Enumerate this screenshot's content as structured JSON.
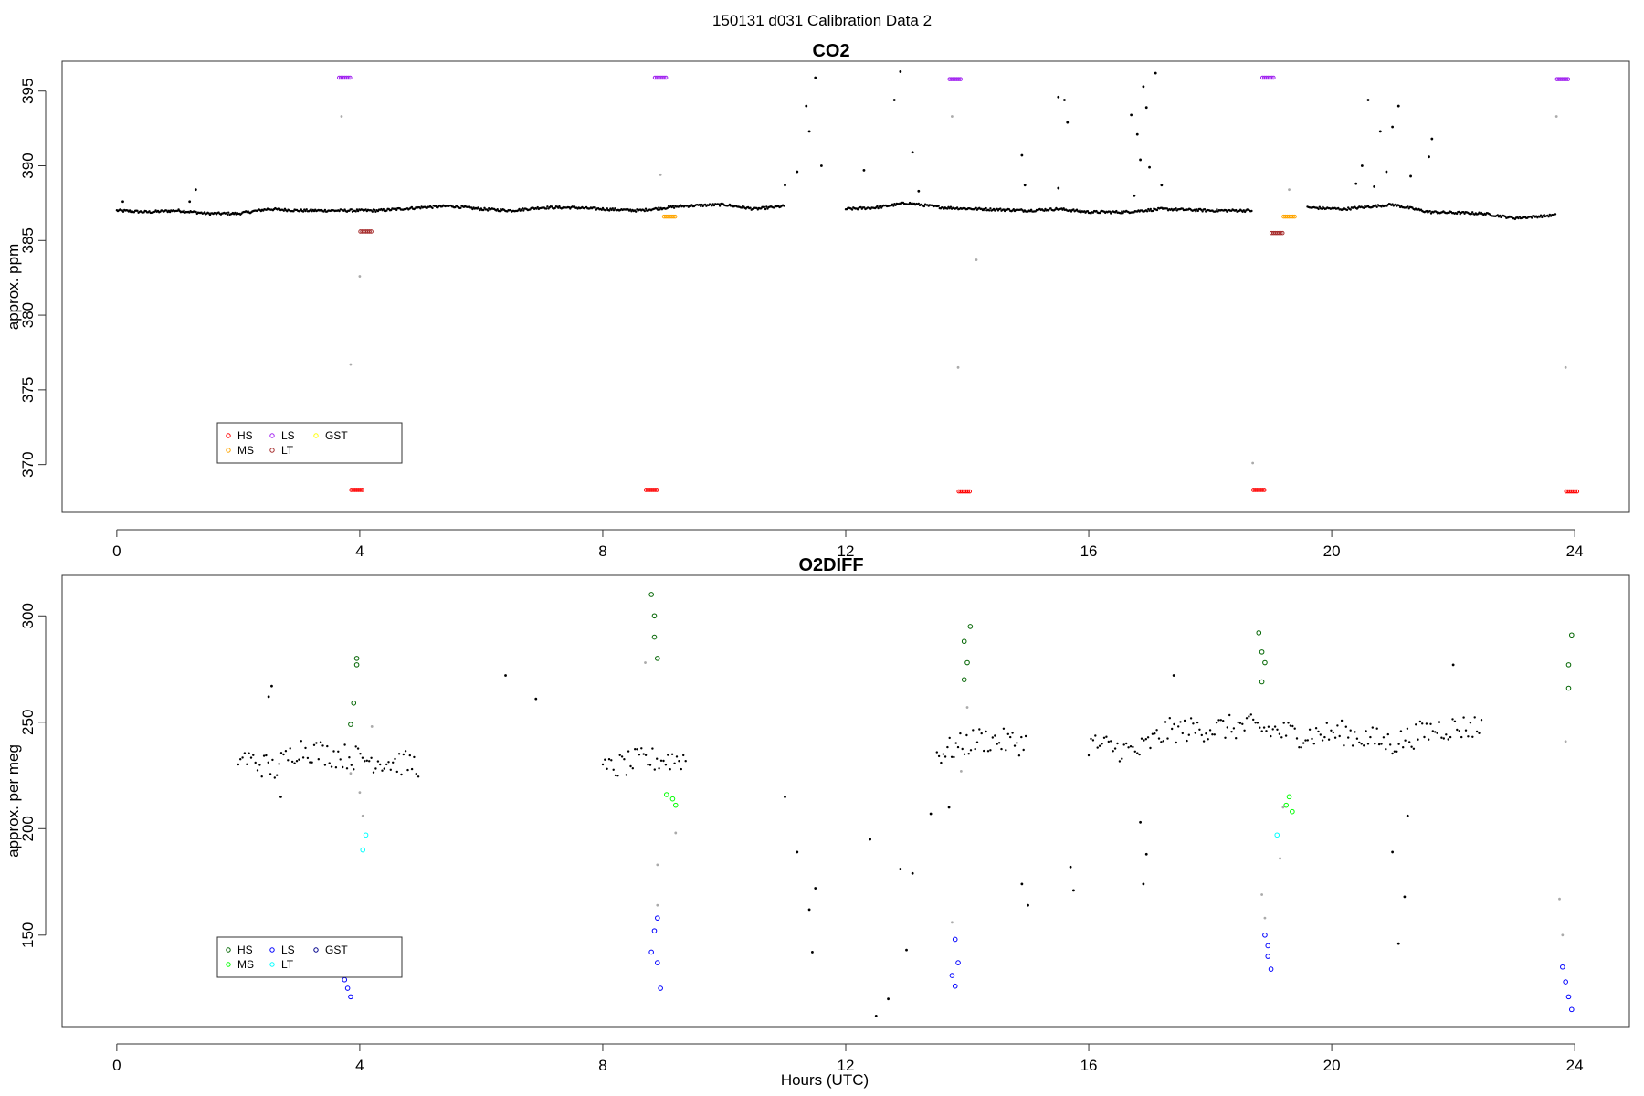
{
  "figure": {
    "title": "150131   d031   Calibration Data 2"
  },
  "legend_colors": {
    "HS_co2": "#ff0000",
    "MS_co2": "#ffa500",
    "LS_co2": "#a020f0",
    "LT_co2": "#a52a2a",
    "GST_co2": "#ffff00",
    "HS_o2": "#006400",
    "MS_o2": "#00ff00",
    "LS_o2": "#0000ff",
    "LT_o2": "#00ffff",
    "GST_o2": "#00008b"
  },
  "chart_data": [
    {
      "type": "scatter",
      "title": "CO2",
      "xlabel": "",
      "ylabel": "approx. ppm",
      "xlim": [
        -0.9,
        24.9
      ],
      "ylim": [
        366.8,
        397.0
      ],
      "xticks": [
        0,
        4,
        8,
        12,
        16,
        20,
        24
      ],
      "yticks": [
        370,
        375,
        380,
        385,
        390,
        395
      ],
      "legend": {
        "placement": "bottom-left",
        "entries": [
          "HS",
          "LS",
          "GST",
          "MS",
          "LT"
        ]
      },
      "baseline": [
        {
          "x": 0.0,
          "y": 387.0
        },
        {
          "x": 0.5,
          "y": 386.9
        },
        {
          "x": 1.0,
          "y": 387.0
        },
        {
          "x": 1.5,
          "y": 386.8
        },
        {
          "x": 2.0,
          "y": 386.8
        },
        {
          "x": 2.5,
          "y": 387.1
        },
        {
          "x": 3.0,
          "y": 387.0
        },
        {
          "x": 3.5,
          "y": 387.0
        },
        {
          "x": 4.3,
          "y": 387.0
        },
        {
          "x": 5.0,
          "y": 387.2
        },
        {
          "x": 5.5,
          "y": 387.3
        },
        {
          "x": 6.0,
          "y": 387.1
        },
        {
          "x": 6.5,
          "y": 387.0
        },
        {
          "x": 7.0,
          "y": 387.2
        },
        {
          "x": 7.5,
          "y": 387.2
        },
        {
          "x": 8.0,
          "y": 387.1
        },
        {
          "x": 8.6,
          "y": 387.0
        },
        {
          "x": 9.3,
          "y": 387.3
        },
        {
          "x": 10.0,
          "y": 387.4
        },
        {
          "x": 10.5,
          "y": 387.1
        },
        {
          "x": 11.0,
          "y": 387.3
        },
        {
          "x": 12.0,
          "y": 387.1
        },
        {
          "x": 12.5,
          "y": 387.2
        },
        {
          "x": 13.0,
          "y": 387.5
        },
        {
          "x": 13.6,
          "y": 387.2
        },
        {
          "x": 14.2,
          "y": 387.1
        },
        {
          "x": 15.0,
          "y": 387.0
        },
        {
          "x": 15.5,
          "y": 387.1
        },
        {
          "x": 16.0,
          "y": 386.9
        },
        {
          "x": 16.6,
          "y": 386.9
        },
        {
          "x": 17.2,
          "y": 387.1
        },
        {
          "x": 18.0,
          "y": 387.0
        },
        {
          "x": 18.7,
          "y": 387.0
        },
        {
          "x": 19.6,
          "y": 387.2
        },
        {
          "x": 20.2,
          "y": 387.1
        },
        {
          "x": 21.0,
          "y": 387.4
        },
        {
          "x": 21.6,
          "y": 386.9
        },
        {
          "x": 22.5,
          "y": 386.8
        },
        {
          "x": 23.0,
          "y": 386.5
        },
        {
          "x": 23.7,
          "y": 386.7
        }
      ],
      "spikes": [
        {
          "x": 0.1,
          "y": 387.6
        },
        {
          "x": 1.2,
          "y": 387.6
        },
        {
          "x": 1.3,
          "y": 388.4
        },
        {
          "x": 11.0,
          "y": 388.7
        },
        {
          "x": 11.2,
          "y": 389.6
        },
        {
          "x": 11.35,
          "y": 394.0
        },
        {
          "x": 11.4,
          "y": 392.3
        },
        {
          "x": 11.5,
          "y": 395.9
        },
        {
          "x": 11.6,
          "y": 390.0
        },
        {
          "x": 12.3,
          "y": 389.7
        },
        {
          "x": 12.9,
          "y": 396.3
        },
        {
          "x": 12.8,
          "y": 394.4
        },
        {
          "x": 13.1,
          "y": 390.9
        },
        {
          "x": 13.2,
          "y": 388.3
        },
        {
          "x": 14.9,
          "y": 390.7
        },
        {
          "x": 14.95,
          "y": 388.7
        },
        {
          "x": 15.5,
          "y": 394.6
        },
        {
          "x": 15.6,
          "y": 394.4
        },
        {
          "x": 15.65,
          "y": 392.9
        },
        {
          "x": 15.5,
          "y": 388.5
        },
        {
          "x": 16.7,
          "y": 393.4
        },
        {
          "x": 16.8,
          "y": 392.1
        },
        {
          "x": 16.85,
          "y": 390.4
        },
        {
          "x": 16.9,
          "y": 395.3
        },
        {
          "x": 16.95,
          "y": 393.9
        },
        {
          "x": 17.0,
          "y": 389.9
        },
        {
          "x": 17.1,
          "y": 396.2
        },
        {
          "x": 17.2,
          "y": 388.7
        },
        {
          "x": 16.75,
          "y": 388.0
        },
        {
          "x": 20.4,
          "y": 388.8
        },
        {
          "x": 20.5,
          "y": 390.0
        },
        {
          "x": 20.6,
          "y": 394.4
        },
        {
          "x": 20.8,
          "y": 392.3
        },
        {
          "x": 20.9,
          "y": 389.6
        },
        {
          "x": 21.0,
          "y": 392.6
        },
        {
          "x": 21.1,
          "y": 394.0
        },
        {
          "x": 21.3,
          "y": 389.3
        },
        {
          "x": 21.6,
          "y": 390.6
        },
        {
          "x": 21.65,
          "y": 391.8
        },
        {
          "x": 20.7,
          "y": 388.6
        }
      ],
      "gray_points": [
        {
          "x": 3.7,
          "y": 393.3
        },
        {
          "x": 3.85,
          "y": 376.7
        },
        {
          "x": 4.0,
          "y": 382.6
        },
        {
          "x": 8.95,
          "y": 389.4
        },
        {
          "x": 13.75,
          "y": 393.3
        },
        {
          "x": 13.85,
          "y": 376.5
        },
        {
          "x": 14.15,
          "y": 383.7
        },
        {
          "x": 18.7,
          "y": 370.1
        },
        {
          "x": 19.3,
          "y": 388.4
        },
        {
          "x": 23.7,
          "y": 393.3
        },
        {
          "x": 23.85,
          "y": 376.5
        }
      ],
      "calibration": [
        {
          "name": "HS",
          "color": "#ff0000",
          "points": [
            {
              "x": 3.95,
              "y": 368.3
            },
            {
              "x": 8.8,
              "y": 368.3
            },
            {
              "x": 13.95,
              "y": 368.2
            },
            {
              "x": 18.8,
              "y": 368.3
            },
            {
              "x": 23.95,
              "y": 368.2
            }
          ]
        },
        {
          "name": "LS",
          "color": "#a020f0",
          "points": [
            {
              "x": 3.75,
              "y": 395.9
            },
            {
              "x": 8.95,
              "y": 395.9
            },
            {
              "x": 13.8,
              "y": 395.8
            },
            {
              "x": 18.95,
              "y": 395.9
            },
            {
              "x": 23.8,
              "y": 395.8
            }
          ]
        },
        {
          "name": "MS",
          "color": "#ffa500",
          "points": [
            {
              "x": 9.1,
              "y": 386.6
            },
            {
              "x": 19.3,
              "y": 386.6
            }
          ]
        },
        {
          "name": "LT",
          "color": "#a52a2a",
          "points": [
            {
              "x": 4.1,
              "y": 385.6
            },
            {
              "x": 19.1,
              "y": 385.5
            }
          ]
        },
        {
          "name": "GST",
          "color": "#ffff00",
          "points": []
        }
      ]
    },
    {
      "type": "scatter",
      "title": "O2DIFF",
      "xlabel": "Hours (UTC)",
      "ylabel": "approx. per meg",
      "xlim": [
        -0.9,
        24.9
      ],
      "ylim": [
        107,
        319
      ],
      "xticks": [
        0,
        4,
        8,
        12,
        16,
        20,
        24
      ],
      "yticks": [
        150,
        200,
        250,
        300
      ],
      "legend": {
        "placement": "bottom-left",
        "entries": [
          "HS",
          "LS",
          "GST",
          "MS",
          "LT"
        ]
      },
      "baseline": [
        {
          "x": 0.0,
          "y": 236
        },
        {
          "x": 1.0,
          "y": 237
        },
        {
          "x": 2.0,
          "y": 234
        },
        {
          "x": 2.6,
          "y": 228
        },
        {
          "x": 3.0,
          "y": 238
        },
        {
          "x": 3.5,
          "y": 235
        },
        {
          "x": 4.3,
          "y": 232
        },
        {
          "x": 5.0,
          "y": 230
        },
        {
          "x": 6.0,
          "y": 235
        },
        {
          "x": 7.0,
          "y": 228
        },
        {
          "x": 8.0,
          "y": 227
        },
        {
          "x": 8.6,
          "y": 232
        },
        {
          "x": 9.4,
          "y": 233
        },
        {
          "x": 10.5,
          "y": 230
        },
        {
          "x": 11.5,
          "y": 228
        },
        {
          "x": 12.5,
          "y": 225
        },
        {
          "x": 13.5,
          "y": 235
        },
        {
          "x": 14.2,
          "y": 242
        },
        {
          "x": 15.0,
          "y": 240
        },
        {
          "x": 16.0,
          "y": 240
        },
        {
          "x": 16.8,
          "y": 236
        },
        {
          "x": 17.3,
          "y": 246
        },
        {
          "x": 18.0,
          "y": 247
        },
        {
          "x": 18.6,
          "y": 248
        },
        {
          "x": 19.5,
          "y": 244
        },
        {
          "x": 20.2,
          "y": 245
        },
        {
          "x": 21.0,
          "y": 240
        },
        {
          "x": 21.7,
          "y": 247
        },
        {
          "x": 22.5,
          "y": 248
        },
        {
          "x": 23.5,
          "y": 246
        }
      ],
      "spikes": [
        {
          "x": 2.5,
          "y": 262
        },
        {
          "x": 2.55,
          "y": 267
        },
        {
          "x": 2.7,
          "y": 215
        },
        {
          "x": 6.4,
          "y": 272
        },
        {
          "x": 6.9,
          "y": 261
        },
        {
          "x": 11.0,
          "y": 215
        },
        {
          "x": 11.2,
          "y": 189
        },
        {
          "x": 11.4,
          "y": 162
        },
        {
          "x": 11.5,
          "y": 172
        },
        {
          "x": 11.45,
          "y": 142
        },
        {
          "x": 12.4,
          "y": 195
        },
        {
          "x": 12.5,
          "y": 112
        },
        {
          "x": 12.7,
          "y": 120
        },
        {
          "x": 12.9,
          "y": 181
        },
        {
          "x": 13.0,
          "y": 143
        },
        {
          "x": 13.1,
          "y": 179
        },
        {
          "x": 13.4,
          "y": 207
        },
        {
          "x": 13.7,
          "y": 210
        },
        {
          "x": 14.9,
          "y": 174
        },
        {
          "x": 15.0,
          "y": 164
        },
        {
          "x": 15.7,
          "y": 182
        },
        {
          "x": 15.75,
          "y": 171
        },
        {
          "x": 16.85,
          "y": 203
        },
        {
          "x": 16.9,
          "y": 174
        },
        {
          "x": 16.95,
          "y": 188
        },
        {
          "x": 17.4,
          "y": 272
        },
        {
          "x": 21.1,
          "y": 146
        },
        {
          "x": 21.2,
          "y": 168
        },
        {
          "x": 21.0,
          "y": 189
        },
        {
          "x": 22.0,
          "y": 277
        },
        {
          "x": 21.25,
          "y": 206
        }
      ],
      "gray_points": [
        {
          "x": 3.85,
          "y": 226
        },
        {
          "x": 4.0,
          "y": 217
        },
        {
          "x": 4.05,
          "y": 206
        },
        {
          "x": 4.2,
          "y": 248
        },
        {
          "x": 8.7,
          "y": 278
        },
        {
          "x": 8.9,
          "y": 183
        },
        {
          "x": 8.9,
          "y": 164
        },
        {
          "x": 9.2,
          "y": 198
        },
        {
          "x": 13.75,
          "y": 156
        },
        {
          "x": 13.9,
          "y": 227
        },
        {
          "x": 14.0,
          "y": 257
        },
        {
          "x": 18.85,
          "y": 169
        },
        {
          "x": 18.9,
          "y": 158
        },
        {
          "x": 19.15,
          "y": 186
        },
        {
          "x": 19.2,
          "y": 210
        },
        {
          "x": 23.75,
          "y": 167
        },
        {
          "x": 23.8,
          "y": 150
        },
        {
          "x": 23.85,
          "y": 241
        }
      ],
      "calibration": [
        {
          "name": "HS",
          "color": "#006400",
          "points": [
            {
              "x": 3.95,
              "y": 280
            },
            {
              "x": 3.95,
              "y": 277
            },
            {
              "x": 3.9,
              "y": 259
            },
            {
              "x": 3.85,
              "y": 249
            },
            {
              "x": 8.8,
              "y": 310
            },
            {
              "x": 8.85,
              "y": 300
            },
            {
              "x": 8.85,
              "y": 290
            },
            {
              "x": 8.9,
              "y": 280
            },
            {
              "x": 13.95,
              "y": 288
            },
            {
              "x": 14.0,
              "y": 278
            },
            {
              "x": 14.05,
              "y": 295
            },
            {
              "x": 13.95,
              "y": 270
            },
            {
              "x": 18.8,
              "y": 292
            },
            {
              "x": 18.85,
              "y": 283
            },
            {
              "x": 18.9,
              "y": 278
            },
            {
              "x": 18.85,
              "y": 269
            },
            {
              "x": 23.95,
              "y": 291
            },
            {
              "x": 23.9,
              "y": 277
            },
            {
              "x": 23.9,
              "y": 266
            }
          ]
        },
        {
          "name": "MS",
          "color": "#00ff00",
          "points": [
            {
              "x": 9.15,
              "y": 214
            },
            {
              "x": 9.2,
              "y": 211
            },
            {
              "x": 9.05,
              "y": 216
            },
            {
              "x": 19.3,
              "y": 215
            },
            {
              "x": 19.35,
              "y": 208
            },
            {
              "x": 19.25,
              "y": 211
            }
          ]
        },
        {
          "name": "LS",
          "color": "#0000ff",
          "points": [
            {
              "x": 3.75,
              "y": 129
            },
            {
              "x": 3.8,
              "y": 125
            },
            {
              "x": 3.85,
              "y": 121
            },
            {
              "x": 8.9,
              "y": 158
            },
            {
              "x": 8.85,
              "y": 152
            },
            {
              "x": 8.9,
              "y": 137
            },
            {
              "x": 8.95,
              "y": 125
            },
            {
              "x": 8.8,
              "y": 142
            },
            {
              "x": 13.8,
              "y": 148
            },
            {
              "x": 13.85,
              "y": 137
            },
            {
              "x": 13.75,
              "y": 131
            },
            {
              "x": 13.8,
              "y": 126
            },
            {
              "x": 18.9,
              "y": 150
            },
            {
              "x": 18.95,
              "y": 140
            },
            {
              "x": 19.0,
              "y": 134
            },
            {
              "x": 18.95,
              "y": 145
            },
            {
              "x": 23.8,
              "y": 135
            },
            {
              "x": 23.85,
              "y": 128
            },
            {
              "x": 23.9,
              "y": 121
            },
            {
              "x": 23.95,
              "y": 115
            }
          ]
        },
        {
          "name": "LT",
          "color": "#00ffff",
          "points": [
            {
              "x": 4.1,
              "y": 197
            },
            {
              "x": 4.05,
              "y": 190
            },
            {
              "x": 19.1,
              "y": 197
            }
          ]
        },
        {
          "name": "GST",
          "color": "#00008b",
          "points": []
        }
      ]
    }
  ]
}
